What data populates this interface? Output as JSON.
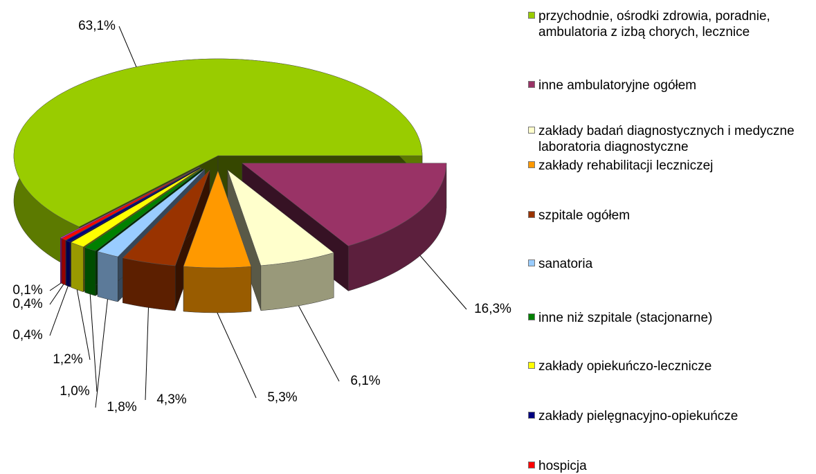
{
  "chart_data": {
    "type": "pie",
    "categories": [
      "przychodnie, ośrodki zdrowia, poradnie, ambulatoria z izbą chorych, lecznice",
      "inne ambulatoryjne ogółem",
      "zakłady badań diagnostycznych i medyczne laboratoria diagnostyczne",
      "zakłady rehabilitacji leczniczej",
      "szpitale ogółem",
      "sanatoria",
      "inne niż szpitale (stacjonarne)",
      "zakłady opiekuńczo-lecznicze",
      "zakłady pielęgnacyjno-opiekuńcze",
      "hospicja",
      null
    ],
    "values": [
      63.1,
      16.3,
      6.1,
      5.3,
      4.3,
      1.8,
      1.0,
      1.2,
      0.4,
      0.4,
      0.1
    ],
    "value_labels": [
      "63,1%",
      "16,3%",
      "6,1%",
      "5,3%",
      "4,3%",
      "1,8%",
      "1,0%",
      "1,2%",
      "0,4%",
      "0,4%",
      "0,1%"
    ],
    "colors": [
      "#99cc00",
      "#993366",
      "#ffffcc",
      "#ff9900",
      "#993300",
      "#99ccff",
      "#008000",
      "#ffff00",
      "#000080",
      "#ff0000",
      "#ff00ff"
    ],
    "legend": "right"
  }
}
